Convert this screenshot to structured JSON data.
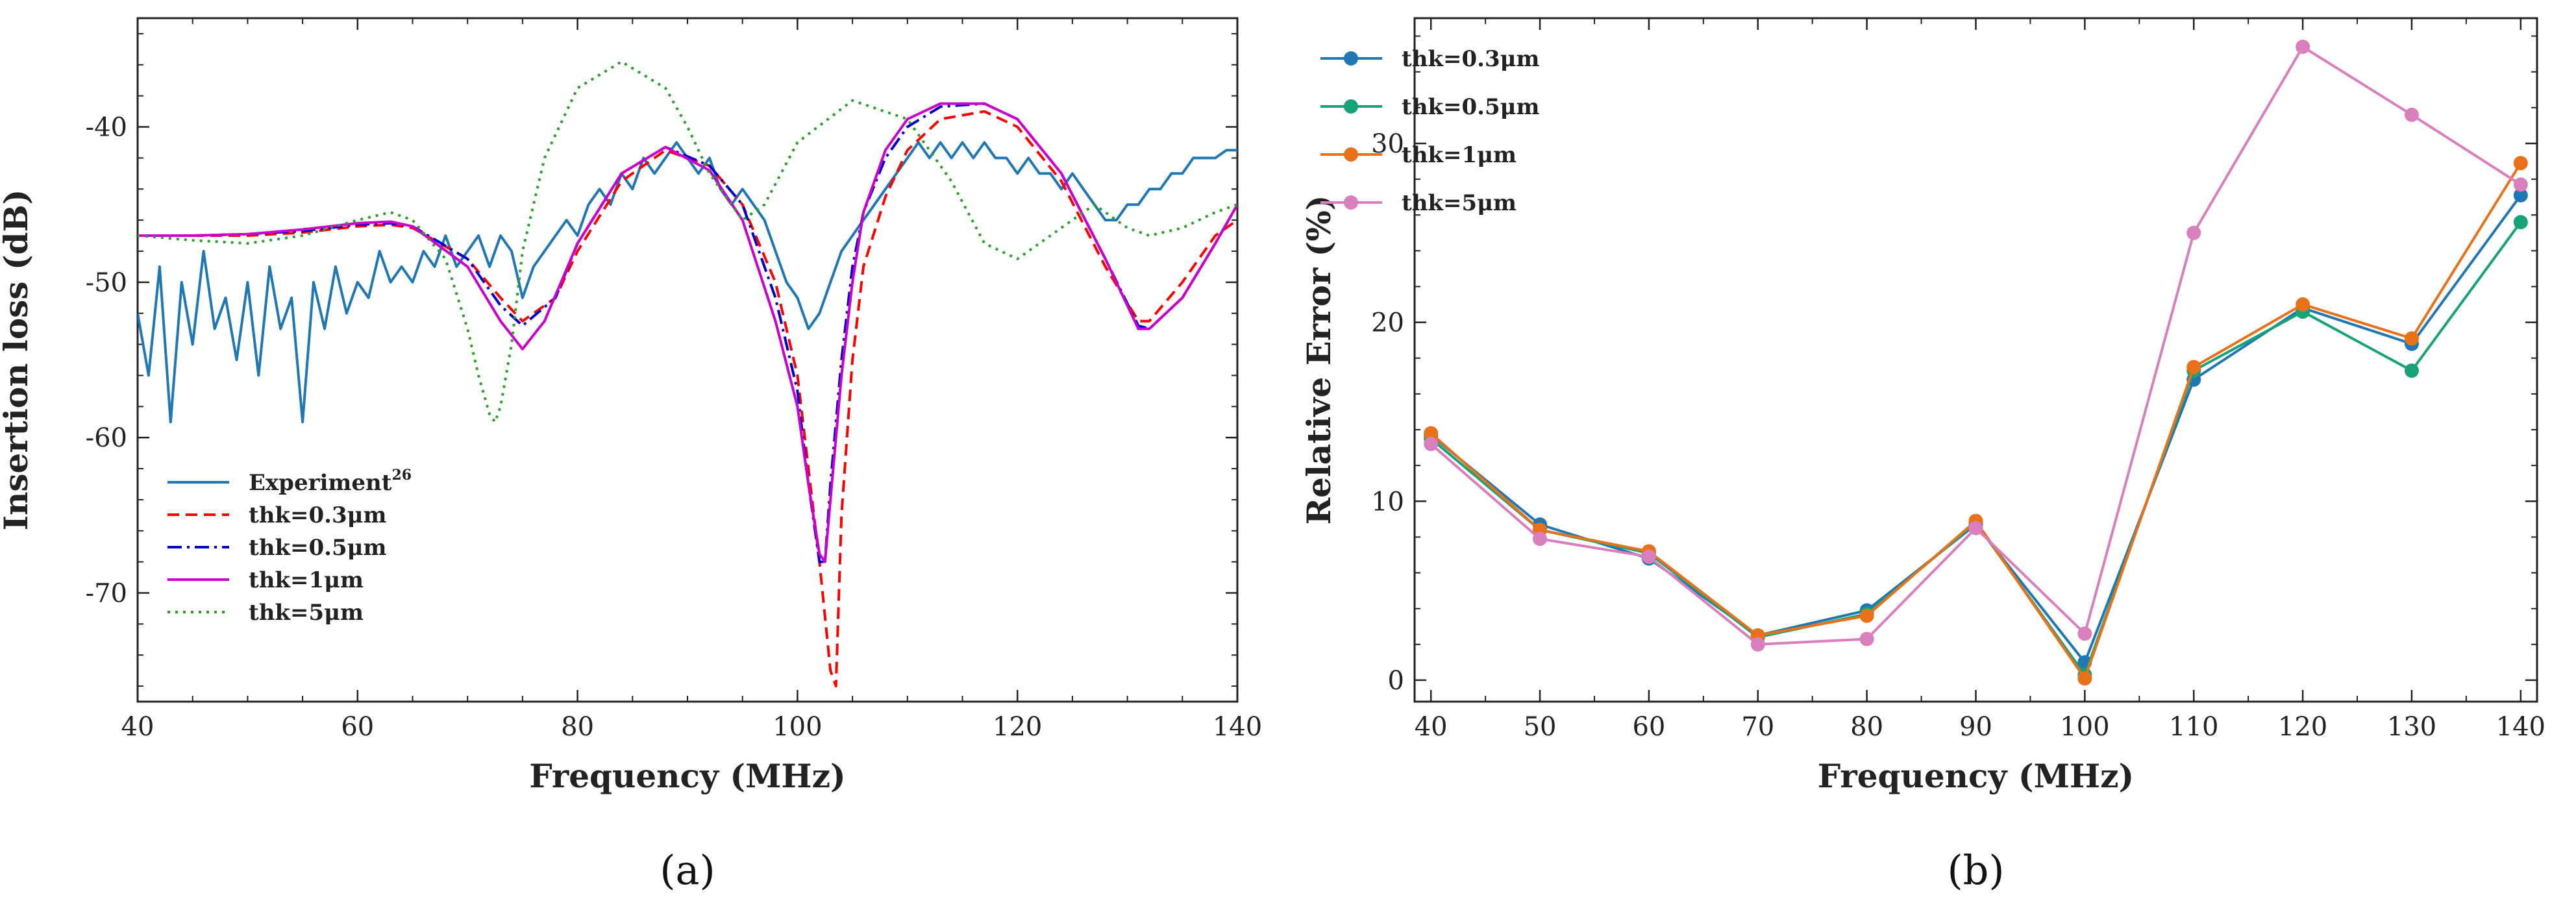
{
  "chart_data": [
    {
      "type": "line",
      "caption": "(a)",
      "xlabel": "Frequency (MHz)",
      "ylabel": "Insertion loss (dB)",
      "xlim": [
        40,
        140
      ],
      "ylim": [
        -77,
        -33
      ],
      "xticks": [
        40,
        60,
        80,
        100,
        120,
        140
      ],
      "yticks": [
        -70,
        -60,
        -50,
        -40
      ],
      "grid": false,
      "legend_position": "bottom-left",
      "series": [
        {
          "name": "Experiment",
          "name_superscript": "26",
          "color": "#1f77b4",
          "dash": "solid",
          "x": [
            40,
            41,
            42,
            43,
            44,
            45,
            46,
            47,
            48,
            49,
            50,
            51,
            52,
            53,
            54,
            55,
            56,
            57,
            58,
            59,
            60,
            61,
            62,
            63,
            64,
            65,
            66,
            67,
            68,
            69,
            70,
            71,
            72,
            73,
            74,
            75,
            76,
            77,
            78,
            79,
            80,
            81,
            82,
            83,
            84,
            85,
            86,
            87,
            88,
            89,
            90,
            91,
            92,
            93,
            94,
            95,
            96,
            97,
            98,
            99,
            100,
            101,
            102,
            103,
            104,
            105,
            106,
            107,
            108,
            109,
            110,
            111,
            112,
            113,
            114,
            115,
            116,
            117,
            118,
            119,
            120,
            121,
            122,
            123,
            124,
            125,
            126,
            127,
            128,
            129,
            130,
            131,
            132,
            133,
            134,
            135,
            136,
            137,
            138,
            139,
            140
          ],
          "y": [
            -52,
            -56,
            -49,
            -59,
            -50,
            -54,
            -48,
            -53,
            -51,
            -55,
            -50,
            -56,
            -49,
            -53,
            -51,
            -59,
            -50,
            -53,
            -49,
            -52,
            -50,
            -51,
            -48,
            -50,
            -49,
            -50,
            -48,
            -49,
            -47,
            -49,
            -48,
            -47,
            -49,
            -47,
            -48,
            -51,
            -49,
            -48,
            -47,
            -46,
            -47,
            -45,
            -44,
            -45,
            -43,
            -44,
            -42,
            -43,
            -42,
            -41,
            -42,
            -43,
            -42,
            -44,
            -45,
            -44,
            -45,
            -46,
            -48,
            -50,
            -51,
            -53,
            -52,
            -50,
            -48,
            -47,
            -46,
            -45,
            -44,
            -43,
            -42,
            -41,
            -42,
            -41,
            -42,
            -41,
            -42,
            -41,
            -42,
            -42,
            -43,
            -42,
            -43,
            -43,
            -44,
            -43,
            -44,
            -45,
            -46,
            -46,
            -45,
            -45,
            -44,
            -44,
            -43,
            -43,
            -42,
            -42,
            -42,
            -41.5,
            -41.5
          ]
        },
        {
          "name": "thk=0.3μm",
          "color": "#ff0000",
          "dash": "dashed",
          "x": [
            40,
            45,
            50,
            55,
            60,
            63,
            65,
            70,
            73,
            75,
            78,
            80,
            84,
            88,
            92,
            95,
            98,
            100,
            101,
            102,
            103,
            103.5,
            104,
            105,
            106,
            108,
            110,
            113,
            117,
            120,
            124,
            128,
            131,
            132,
            135,
            138,
            140
          ],
          "y": [
            -47,
            -47,
            -47,
            -46.8,
            -46.4,
            -46.3,
            -46.5,
            -48.5,
            -51,
            -52.5,
            -51,
            -48,
            -43.5,
            -41.5,
            -42.5,
            -45,
            -50,
            -56,
            -62,
            -68,
            -75,
            -76,
            -65,
            -55,
            -49,
            -44.5,
            -41.5,
            -39.5,
            -39,
            -40,
            -43.5,
            -49,
            -52.5,
            -52.5,
            -50,
            -47,
            -46
          ]
        },
        {
          "name": "thk=0.5μm",
          "color": "#0000cc",
          "dash": "dashdot",
          "x": [
            40,
            45,
            50,
            55,
            60,
            63,
            65,
            70,
            73,
            75,
            78,
            80,
            84,
            88,
            92,
            95,
            98,
            100,
            101,
            102,
            102.5,
            103,
            104,
            105,
            106,
            108,
            110,
            113,
            117,
            120,
            124,
            128,
            131,
            132,
            135,
            138,
            140
          ],
          "y": [
            -47,
            -47,
            -46.9,
            -46.7,
            -46.3,
            -46.2,
            -46.4,
            -48.5,
            -51.5,
            -52.8,
            -51,
            -47.5,
            -43,
            -41.3,
            -42.5,
            -45,
            -51,
            -57,
            -63,
            -68,
            -68,
            -63,
            -55,
            -49,
            -45.5,
            -42,
            -40,
            -38.7,
            -38.5,
            -39.5,
            -43,
            -48.5,
            -52.8,
            -53,
            -51,
            -47.5,
            -45
          ]
        },
        {
          "name": "thk=1μm",
          "color": "#cc00cc",
          "dash": "solid",
          "x": [
            40,
            45,
            50,
            55,
            60,
            63,
            65,
            70,
            73,
            75,
            77,
            80,
            84,
            88,
            92,
            95,
            98,
            100,
            101,
            102,
            102.5,
            103,
            104,
            105,
            106,
            108,
            110,
            113,
            117,
            120,
            124,
            128,
            131,
            132,
            135,
            138,
            140
          ],
          "y": [
            -47,
            -47,
            -46.9,
            -46.6,
            -46.2,
            -46.1,
            -46.4,
            -49,
            -52.5,
            -54.3,
            -52.5,
            -47.5,
            -43,
            -41.3,
            -42.8,
            -46,
            -52.5,
            -58,
            -63,
            -67.5,
            -68,
            -64,
            -56,
            -50,
            -45.5,
            -41.5,
            -39.5,
            -38.5,
            -38.5,
            -39.5,
            -43,
            -48.5,
            -53,
            -53,
            -51,
            -47.5,
            -45
          ]
        },
        {
          "name": "thk=5μm",
          "color": "#2ca02c",
          "dash": "dotted",
          "x": [
            40,
            45,
            50,
            55,
            60,
            63,
            65,
            68,
            70,
            71,
            72,
            72.5,
            73,
            74,
            75,
            77,
            80,
            84,
            88,
            90,
            92,
            95,
            97,
            100,
            105,
            110,
            114,
            117,
            120,
            123,
            127,
            130,
            132,
            135,
            138,
            140
          ],
          "y": [
            -47,
            -47.3,
            -47.5,
            -47,
            -46,
            -45.5,
            -46,
            -48.5,
            -53,
            -56,
            -58.5,
            -59,
            -58,
            -54,
            -48,
            -42,
            -37.5,
            -35.8,
            -37.5,
            -40,
            -43,
            -46,
            -45,
            -41,
            -38.3,
            -39.5,
            -43.5,
            -47.5,
            -48.5,
            -47,
            -45,
            -46.5,
            -47,
            -46.5,
            -45.5,
            -45
          ]
        }
      ]
    },
    {
      "type": "line",
      "caption": "(b)",
      "xlabel": "Frequency (MHz)",
      "ylabel": "Relative Error (%)",
      "xlim": [
        38.5,
        141.5
      ],
      "ylim": [
        -1.2,
        37
      ],
      "xticks": [
        40,
        50,
        60,
        70,
        80,
        90,
        100,
        110,
        120,
        130,
        140
      ],
      "yticks": [
        0,
        10,
        20,
        30
      ],
      "grid": false,
      "legend_position": "top-left",
      "markers": "circle",
      "x": [
        40,
        50,
        60,
        70,
        80,
        90,
        100,
        110,
        120,
        130,
        140
      ],
      "series": [
        {
          "name": "thk=0.3μm",
          "color": "#1f77b4",
          "values": [
            13.7,
            8.7,
            6.8,
            2.5,
            3.9,
            8.7,
            1.0,
            16.8,
            20.8,
            18.8,
            27.1
          ]
        },
        {
          "name": "thk=0.5μm",
          "color": "#17a377",
          "values": [
            13.5,
            8.4,
            7.1,
            2.4,
            3.7,
            8.8,
            0.3,
            17.3,
            20.6,
            17.3,
            25.6
          ]
        },
        {
          "name": "thk=1μm",
          "color": "#e8711a",
          "values": [
            13.8,
            8.4,
            7.2,
            2.5,
            3.6,
            8.9,
            0.1,
            17.5,
            21.0,
            19.1,
            28.9
          ]
        },
        {
          "name": "thk=5μm",
          "color": "#d97fbd",
          "values": [
            13.2,
            7.9,
            6.9,
            2.0,
            2.3,
            8.5,
            2.6,
            25.0,
            35.4,
            31.6,
            27.7
          ]
        }
      ]
    }
  ]
}
